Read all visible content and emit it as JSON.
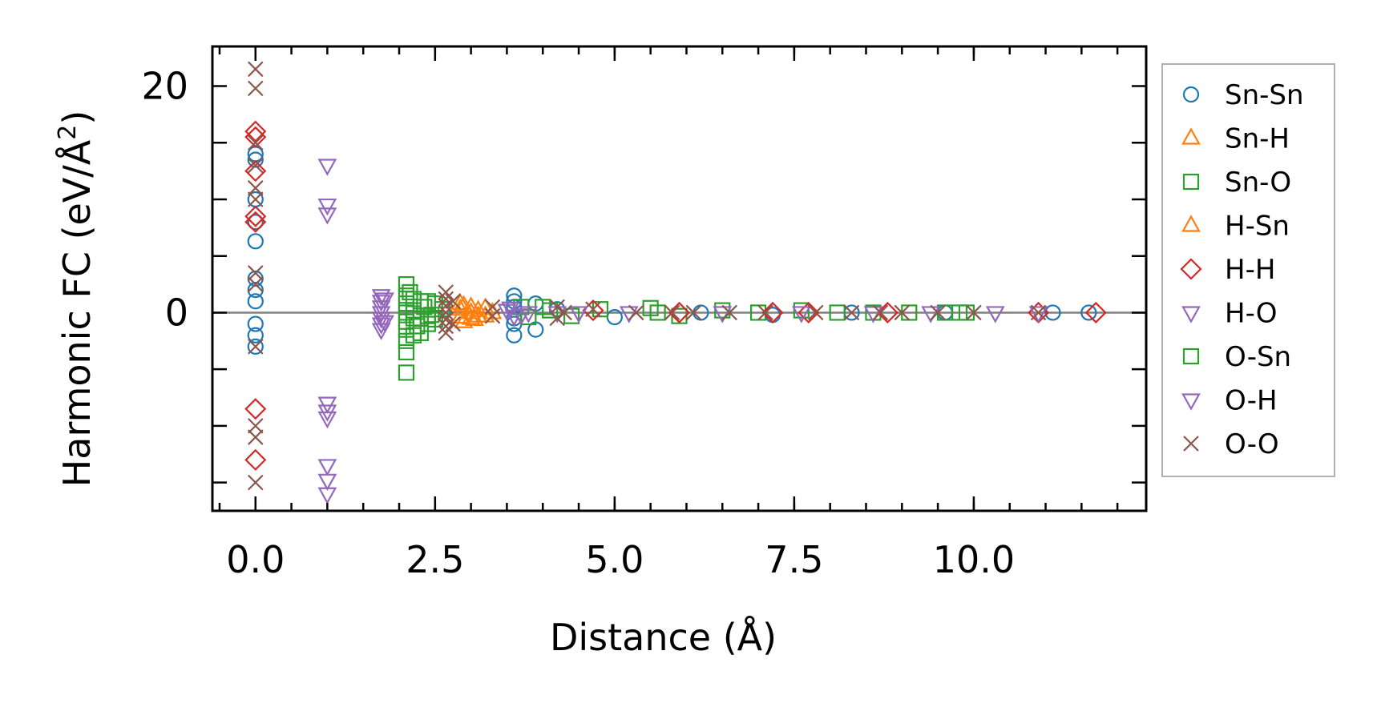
{
  "chart_data": {
    "type": "scatter",
    "xlabel": "Distance (Å)",
    "ylabel_main": "Harmonic FC (eV/Å",
    "ylabel_sup": "2",
    "ylabel_close": ")",
    "xlim": [
      -0.6,
      12.4
    ],
    "ylim": [
      -17.5,
      23.5
    ],
    "xticks": [
      0.0,
      2.5,
      5.0,
      7.5,
      10.0
    ],
    "xtick_labels": [
      "0.0",
      "2.5",
      "5.0",
      "7.5",
      "10.0"
    ],
    "yticks": [
      0,
      20
    ],
    "ytick_labels": [
      "0",
      "20"
    ],
    "x_minor_step": 0.5,
    "y_minor_step": 5,
    "zero_line": true,
    "legend_position": "outside-right",
    "series": [
      {
        "name": "Sn-Sn",
        "marker": "circle",
        "color": "#1f77b4",
        "points": [
          [
            0,
            14
          ],
          [
            0,
            13.5
          ],
          [
            0,
            10
          ],
          [
            0,
            8
          ],
          [
            0,
            6.3
          ],
          [
            0,
            3
          ],
          [
            0,
            2
          ],
          [
            0,
            1
          ],
          [
            0,
            -1
          ],
          [
            0,
            -2
          ],
          [
            0,
            -3
          ],
          [
            3.6,
            1.5
          ],
          [
            3.6,
            1
          ],
          [
            3.6,
            0.5
          ],
          [
            3.6,
            -0.5
          ],
          [
            3.6,
            -1
          ],
          [
            3.6,
            -2
          ],
          [
            3.9,
            -1.5
          ],
          [
            3.9,
            0.8
          ],
          [
            4.2,
            0.3
          ],
          [
            5.0,
            -0.4
          ],
          [
            6.2,
            0
          ],
          [
            7.2,
            -0.2
          ],
          [
            8.3,
            0
          ],
          [
            9.6,
            0
          ],
          [
            11.1,
            0
          ],
          [
            11.6,
            0
          ]
        ]
      },
      {
        "name": "Sn-H",
        "marker": "triangle-up",
        "color": "#ff7f0e",
        "points": [
          [
            2.85,
            0.8
          ],
          [
            2.85,
            0.3
          ],
          [
            2.85,
            -0.4
          ],
          [
            2.9,
            -0.8
          ],
          [
            3.0,
            0.5
          ],
          [
            3.0,
            -0.5
          ],
          [
            3.1,
            0.2
          ],
          [
            3.1,
            -0.3
          ],
          [
            3.2,
            0.4
          ],
          [
            3.3,
            0
          ]
        ]
      },
      {
        "name": "Sn-O",
        "marker": "square",
        "color": "#2ca02c",
        "points": [
          [
            2.1,
            2.5
          ],
          [
            2.1,
            1.5
          ],
          [
            2.1,
            0.8
          ],
          [
            2.1,
            0
          ],
          [
            2.1,
            -0.8
          ],
          [
            2.1,
            -1.5
          ],
          [
            2.1,
            -2.5
          ],
          [
            2.1,
            -3.5
          ],
          [
            2.1,
            -5.3
          ],
          [
            2.2,
            1.2
          ],
          [
            2.2,
            -0.5
          ],
          [
            2.2,
            -2
          ],
          [
            2.3,
            1
          ],
          [
            2.3,
            -0.5
          ],
          [
            2.3,
            -1.8
          ],
          [
            2.4,
            1
          ],
          [
            2.4,
            -0.3
          ],
          [
            2.4,
            -1
          ],
          [
            2.5,
            0.8
          ],
          [
            2.5,
            -0.6
          ],
          [
            2.6,
            0.3
          ],
          [
            3.7,
            0.5
          ],
          [
            3.8,
            -0.4
          ],
          [
            4.0,
            0.5
          ],
          [
            4.4,
            -0.3
          ],
          [
            4.8,
            0.3
          ],
          [
            5.5,
            0.4
          ],
          [
            5.9,
            -0.3
          ],
          [
            6.5,
            0.2
          ],
          [
            7.0,
            0
          ],
          [
            7.6,
            0.2
          ],
          [
            8.1,
            0
          ],
          [
            8.6,
            0
          ],
          [
            9.1,
            0
          ],
          [
            9.6,
            0
          ],
          [
            9.8,
            0
          ],
          [
            9.9,
            0
          ]
        ]
      },
      {
        "name": "H-Sn",
        "marker": "triangle-up",
        "color": "#ff7f0e",
        "points": [
          [
            2.9,
            0.6
          ],
          [
            3.0,
            0
          ],
          [
            3.05,
            -0.6
          ],
          [
            3.2,
            -0.3
          ]
        ]
      },
      {
        "name": "H-H",
        "marker": "diamond",
        "color": "#d62728",
        "points": [
          [
            0,
            16
          ],
          [
            0,
            15.5
          ],
          [
            0,
            12.5
          ],
          [
            0,
            8.5
          ],
          [
            0,
            8
          ],
          [
            0,
            -8.5
          ],
          [
            0,
            -13
          ],
          [
            4.7,
            0.2
          ],
          [
            5.9,
            0
          ],
          [
            7.2,
            0
          ],
          [
            7.7,
            0
          ],
          [
            8.8,
            0
          ],
          [
            10.9,
            0
          ],
          [
            11.7,
            0
          ]
        ]
      },
      {
        "name": "H-O",
        "marker": "triangle-down",
        "color": "#9467bd",
        "points": [
          [
            1.0,
            13
          ],
          [
            1.0,
            9.5
          ],
          [
            1.0,
            8.7
          ],
          [
            1.0,
            -8
          ],
          [
            1.0,
            -8.7
          ],
          [
            1.0,
            -9.3
          ],
          [
            1.0,
            -13.5
          ],
          [
            1.0,
            -14.8
          ],
          [
            1.0,
            -16
          ],
          [
            1.75,
            1.5
          ],
          [
            1.75,
            1
          ],
          [
            1.75,
            0.5
          ],
          [
            1.75,
            0
          ],
          [
            1.75,
            -0.5
          ],
          [
            1.75,
            -1
          ],
          [
            1.75,
            -1.5
          ],
          [
            3.5,
            0.2
          ],
          [
            3.6,
            -0.3
          ],
          [
            3.8,
            0
          ],
          [
            4.2,
            0
          ],
          [
            5.2,
            0
          ],
          [
            6.5,
            0
          ],
          [
            7.6,
            0
          ],
          [
            8.6,
            0
          ],
          [
            9.4,
            0
          ],
          [
            10.3,
            0
          ],
          [
            10.9,
            0
          ]
        ]
      },
      {
        "name": "O-Sn",
        "marker": "square",
        "color": "#2ca02c",
        "points": [
          [
            2.15,
            1.8
          ],
          [
            2.2,
            0.2
          ],
          [
            2.25,
            -1.2
          ],
          [
            2.35,
            0.5
          ],
          [
            2.45,
            -0.2
          ],
          [
            4.1,
            0.2
          ],
          [
            5.6,
            0
          ]
        ]
      },
      {
        "name": "O-H",
        "marker": "triangle-down",
        "color": "#9467bd",
        "points": [
          [
            1.8,
            1.2
          ],
          [
            1.8,
            -0.8
          ],
          [
            3.55,
            0.4
          ],
          [
            3.7,
            -0.2
          ],
          [
            4.5,
            0
          ]
        ]
      },
      {
        "name": "O-O",
        "marker": "x",
        "color": "#8c564b",
        "points": [
          [
            0,
            21.5
          ],
          [
            0,
            19.8
          ],
          [
            0,
            15
          ],
          [
            0,
            13
          ],
          [
            0,
            11
          ],
          [
            0,
            10
          ],
          [
            0,
            3.5
          ],
          [
            0,
            2.5
          ],
          [
            0,
            -3
          ],
          [
            0,
            -10
          ],
          [
            0,
            -11
          ],
          [
            0,
            -15
          ],
          [
            2.65,
            1.8
          ],
          [
            2.65,
            1.2
          ],
          [
            2.65,
            0.6
          ],
          [
            2.65,
            0
          ],
          [
            2.65,
            -0.6
          ],
          [
            2.65,
            -1.2
          ],
          [
            2.65,
            -1.8
          ],
          [
            2.75,
            1
          ],
          [
            2.75,
            -1
          ],
          [
            3.3,
            0.5
          ],
          [
            3.3,
            -0.3
          ],
          [
            4.2,
            0.5
          ],
          [
            4.2,
            -0.5
          ],
          [
            4.3,
            0
          ],
          [
            4.7,
            0.3
          ],
          [
            5.3,
            0
          ],
          [
            5.8,
            0
          ],
          [
            6.1,
            0
          ],
          [
            6.6,
            0
          ],
          [
            7.1,
            0
          ],
          [
            7.8,
            0
          ],
          [
            8.3,
            0
          ],
          [
            8.7,
            0
          ],
          [
            9.0,
            0
          ],
          [
            9.5,
            0
          ],
          [
            10.0,
            0
          ],
          [
            10.9,
            0
          ]
        ]
      }
    ]
  }
}
